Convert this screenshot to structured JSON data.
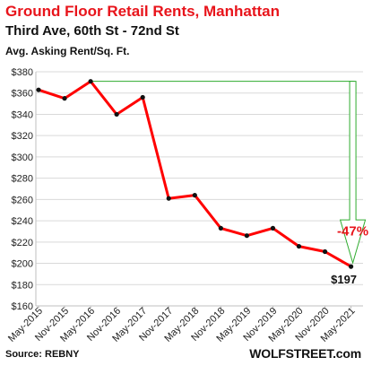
{
  "header": {
    "title": "Ground  Floor Retail Rents, Manhattan",
    "subtitle": "Third Ave, 60th St - 72nd St",
    "ylabel": "Avg. Asking Rent/Sq. Ft."
  },
  "footer": {
    "source": "Source: REBNY",
    "brand": "WOLFSTREET.com"
  },
  "chart_data": {
    "type": "line",
    "title": "Ground  Floor Retail Rents, Manhattan",
    "subtitle": "Third Ave, 60th St - 72nd St",
    "ylabel": "Avg. Asking Rent/Sq. Ft.",
    "categories": [
      "May-2015",
      "Nov-2015",
      "May-2016",
      "Nov-2016",
      "May-2017",
      "Nov-2017",
      "May-2018",
      "Nov-2018",
      "May-2019",
      "Nov-2019",
      "May-2020",
      "Nov-2020",
      "May-2021"
    ],
    "values": [
      363,
      355,
      371,
      340,
      356,
      261,
      264,
      233,
      226,
      233,
      216,
      211,
      197
    ],
    "ylim": [
      160,
      380
    ],
    "yticks": [
      "$160",
      "$180",
      "$200",
      "$220",
      "$240",
      "$260",
      "$280",
      "$300",
      "$320",
      "$340",
      "$360",
      "$380"
    ],
    "grid": true,
    "line_color": "#ff0000",
    "annotation_color": "#2dab2d",
    "annotations": {
      "change_label": "-47%",
      "last_value_label": "$197"
    }
  }
}
